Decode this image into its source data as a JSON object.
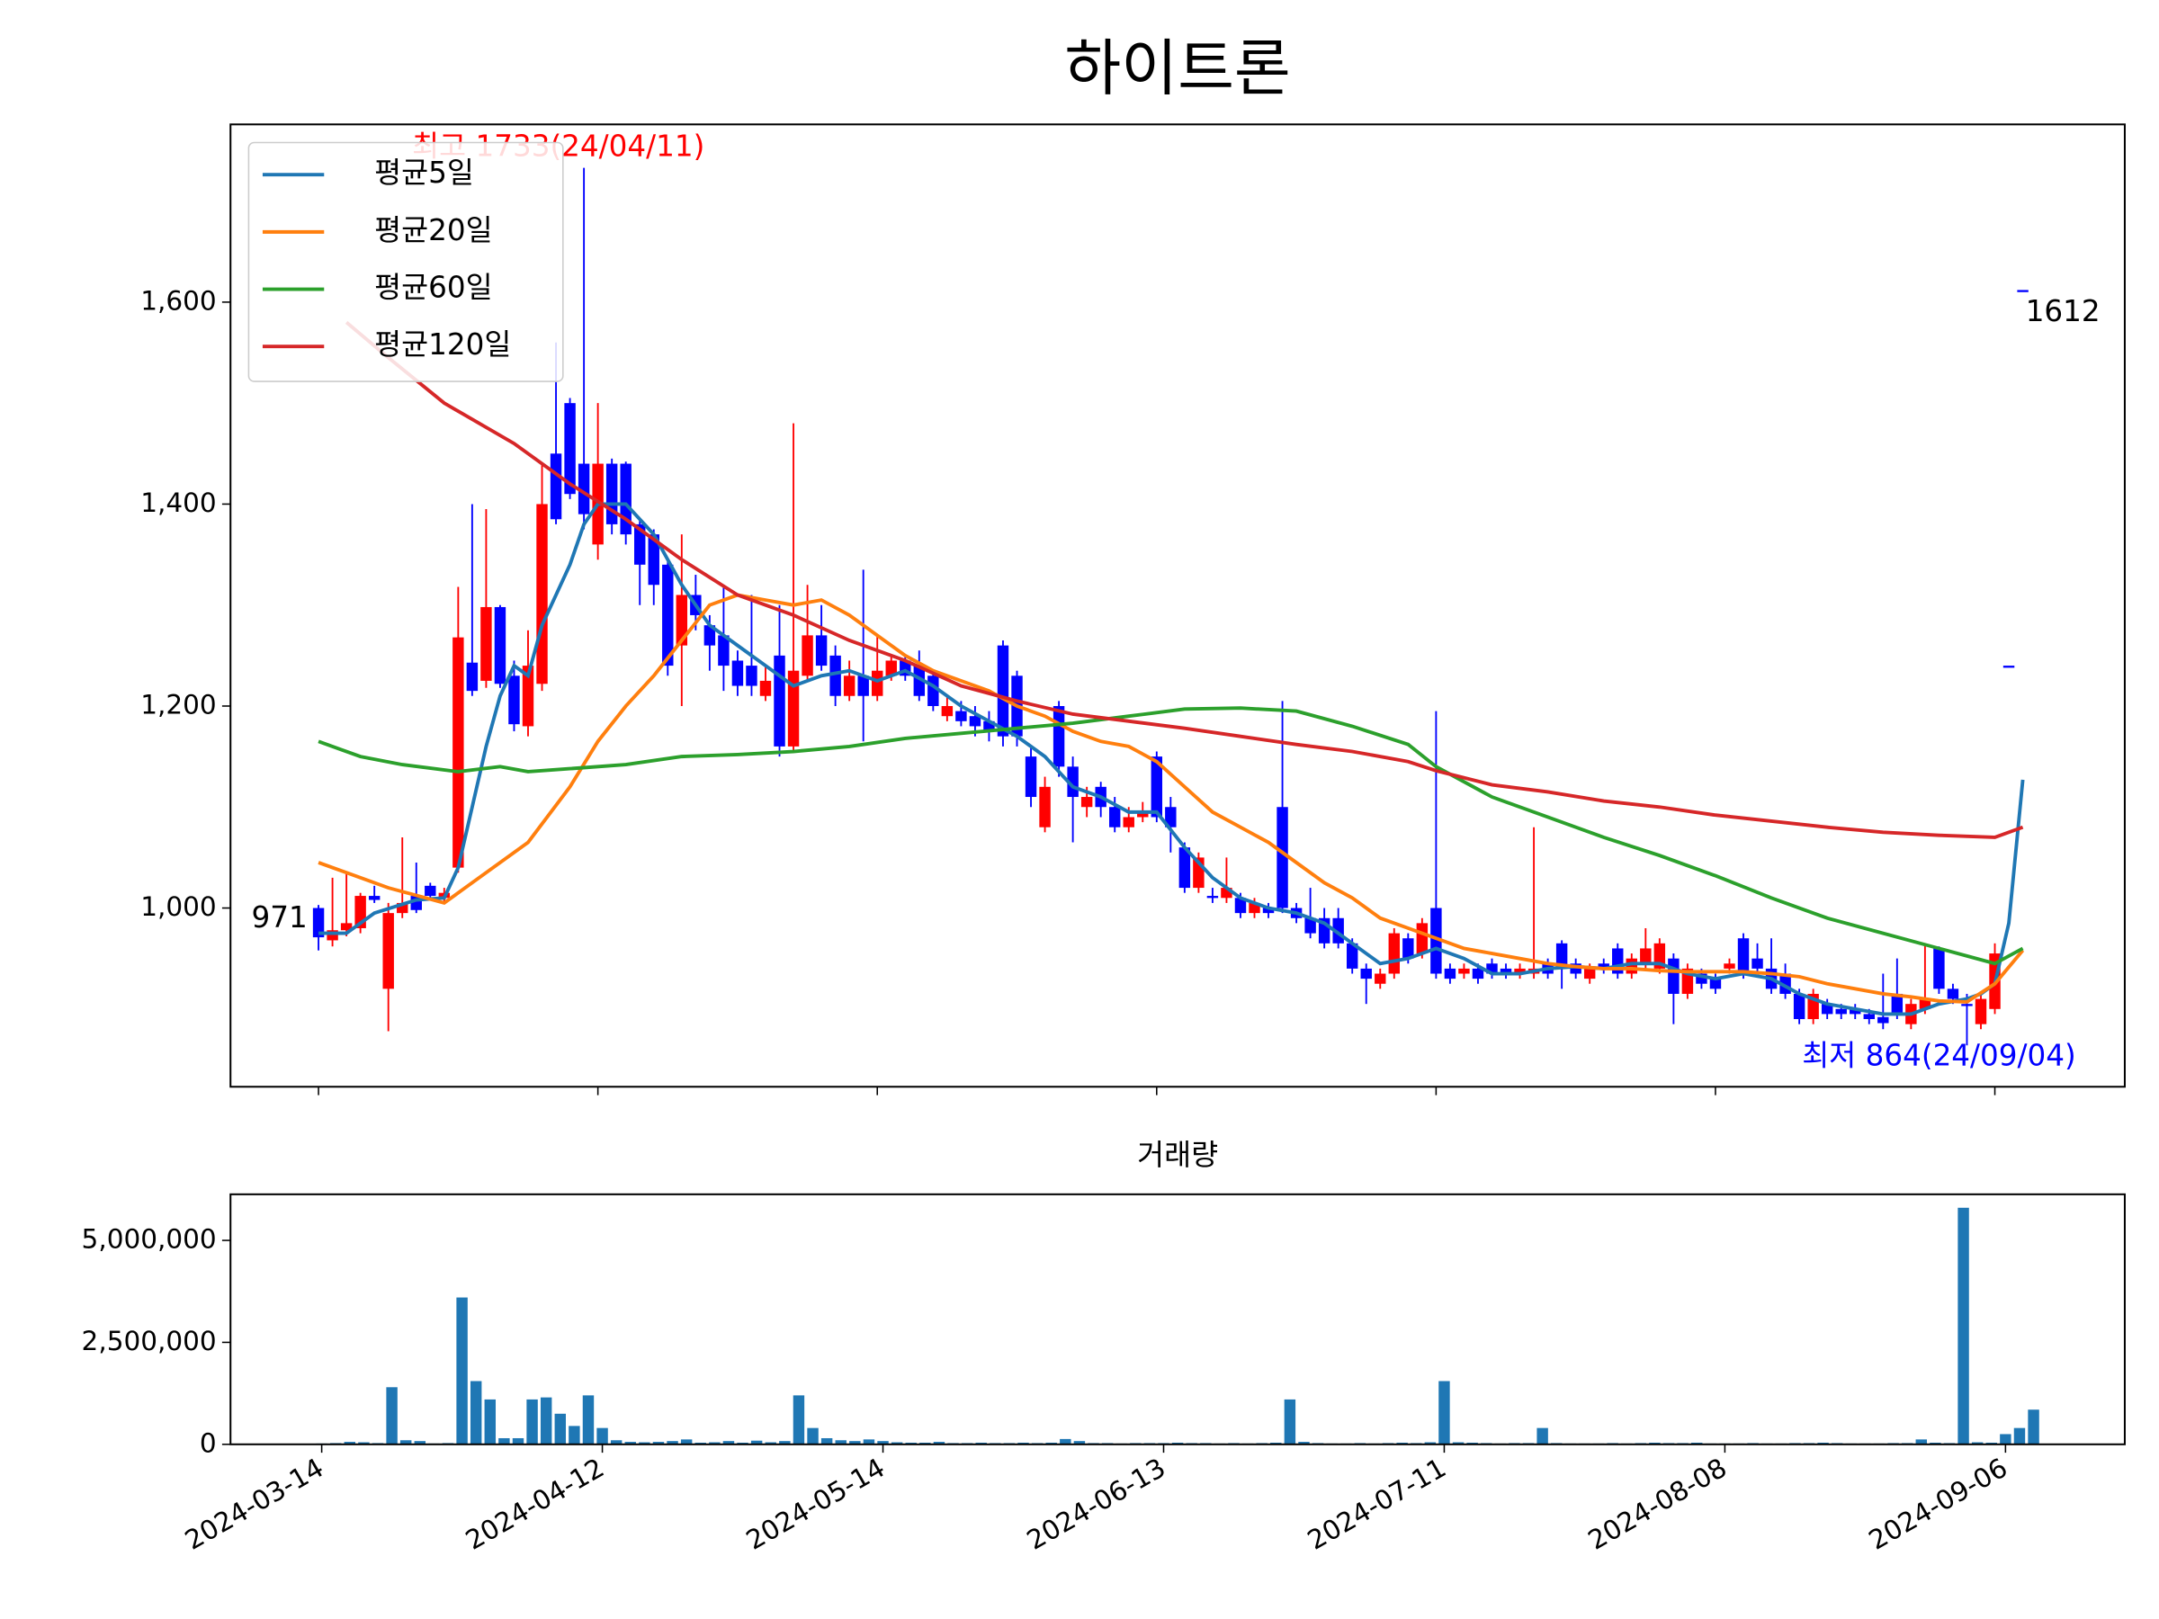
{
  "chart_data": [
    {
      "type": "candlestick",
      "title": "하이트론",
      "open": [
        1000,
        968,
        978,
        980,
        1012,
        920,
        995,
        1012,
        1022,
        1010,
        1040,
        1243,
        1225,
        1298,
        1230,
        1180,
        1222,
        1450,
        1500,
        1440,
        1360,
        1440,
        1440,
        1380,
        1370,
        1340,
        1260,
        1310,
        1280,
        1270,
        1245,
        1240,
        1210,
        1250,
        1160,
        1230,
        1270,
        1250,
        1210,
        1230,
        1210,
        1230,
        1245,
        1240,
        1230,
        1190,
        1195,
        1190,
        1185,
        1260,
        1230,
        1150,
        1080,
        1200,
        1140,
        1100,
        1120,
        1100,
        1080,
        1090,
        1150,
        1100,
        1060,
        1020,
        1012,
        1010,
        1010,
        995,
        1000,
        1100,
        1000,
        990,
        990,
        990,
        965,
        940,
        925,
        935,
        970,
        955,
        1000,
        940,
        935,
        940,
        945,
        940,
        935,
        935,
        945,
        965,
        945,
        930,
        945,
        960,
        935,
        945,
        940,
        950,
        915,
        935,
        930,
        940,
        970,
        950,
        940,
        935,
        915,
        890,
        905,
        900,
        900,
        895,
        892,
        915,
        885,
        900,
        960,
        920,
        905,
        885,
        900,
        1240,
        1612
      ],
      "high": [
        1003,
        1030,
        1035,
        1015,
        1022,
        1005,
        1070,
        1045,
        1025,
        1020,
        1318,
        1400,
        1395,
        1300,
        1245,
        1275,
        1440,
        1560,
        1505,
        1733,
        1500,
        1445,
        1442,
        1385,
        1375,
        1345,
        1370,
        1330,
        1290,
        1320,
        1255,
        1310,
        1240,
        1300,
        1480,
        1320,
        1300,
        1260,
        1245,
        1335,
        1270,
        1250,
        1250,
        1255,
        1235,
        1210,
        1205,
        1200,
        1195,
        1265,
        1235,
        1160,
        1130,
        1205,
        1150,
        1120,
        1125,
        1110,
        1100,
        1105,
        1155,
        1110,
        1065,
        1055,
        1020,
        1050,
        1015,
        1010,
        1005,
        1205,
        1005,
        1020,
        1000,
        1000,
        970,
        945,
        940,
        980,
        975,
        990,
        1195,
        945,
        945,
        945,
        950,
        945,
        945,
        1080,
        950,
        968,
        950,
        945,
        950,
        965,
        955,
        980,
        970,
        955,
        945,
        940,
        935,
        950,
        975,
        965,
        970,
        945,
        920,
        920,
        910,
        905,
        905,
        900,
        935,
        950,
        910,
        965,
        962,
        925,
        915,
        915,
        965,
        1240,
        1612
      ],
      "low": [
        958,
        962,
        972,
        975,
        1005,
        878,
        990,
        995,
        1008,
        1005,
        1035,
        1210,
        1218,
        1218,
        1175,
        1170,
        1215,
        1380,
        1405,
        1375,
        1345,
        1370,
        1360,
        1300,
        1300,
        1230,
        1200,
        1275,
        1235,
        1215,
        1210,
        1210,
        1205,
        1150,
        1155,
        1225,
        1235,
        1200,
        1205,
        1165,
        1205,
        1225,
        1225,
        1205,
        1195,
        1185,
        1180,
        1170,
        1165,
        1160,
        1160,
        1100,
        1075,
        1130,
        1065,
        1090,
        1090,
        1075,
        1075,
        1085,
        1085,
        1055,
        1015,
        1015,
        1005,
        1005,
        990,
        990,
        990,
        995,
        985,
        970,
        960,
        960,
        935,
        905,
        920,
        930,
        945,
        950,
        930,
        925,
        930,
        925,
        930,
        930,
        930,
        930,
        930,
        920,
        930,
        925,
        935,
        930,
        930,
        940,
        935,
        885,
        910,
        920,
        915,
        935,
        930,
        935,
        915,
        910,
        885,
        885,
        890,
        890,
        890,
        885,
        880,
        890,
        880,
        895,
        915,
        905,
        864,
        880,
        895,
        1240,
        1612
      ],
      "close": [
        971,
        978,
        985,
        1012,
        1008,
        995,
        1005,
        998,
        1012,
        1015,
        1268,
        1215,
        1298,
        1222,
        1182,
        1240,
        1400,
        1385,
        1410,
        1390,
        1440,
        1380,
        1370,
        1340,
        1320,
        1240,
        1310,
        1290,
        1260,
        1240,
        1220,
        1220,
        1225,
        1160,
        1235,
        1270,
        1240,
        1210,
        1230,
        1210,
        1235,
        1245,
        1230,
        1210,
        1200,
        1200,
        1185,
        1180,
        1175,
        1170,
        1170,
        1110,
        1120,
        1140,
        1110,
        1110,
        1100,
        1080,
        1090,
        1095,
        1090,
        1080,
        1020,
        1050,
        1010,
        1020,
        995,
        1005,
        995,
        1000,
        990,
        975,
        965,
        965,
        940,
        930,
        935,
        975,
        950,
        985,
        935,
        930,
        940,
        930,
        935,
        935,
        940,
        940,
        935,
        940,
        935,
        940,
        940,
        935,
        950,
        960,
        965,
        915,
        940,
        925,
        920,
        945,
        935,
        940,
        920,
        915,
        890,
        915,
        895,
        895,
        895,
        890,
        886,
        895,
        905,
        910,
        920,
        910,
        903,
        910,
        955,
        1240,
        1612
      ],
      "up_color": "#ff0000",
      "down_color": "#0000ff",
      "series": [
        {
          "name": "평균5일",
          "color": "#1f77b4",
          "x": [
            0,
            2,
            4,
            7,
            9,
            10,
            11,
            12,
            13,
            14,
            15,
            16,
            18,
            19,
            20,
            22,
            24,
            26,
            28,
            30,
            32,
            34,
            36,
            38,
            40,
            42,
            44,
            46,
            48,
            50,
            52,
            54,
            56,
            58,
            60,
            62,
            64,
            66,
            68,
            70,
            72,
            74,
            76,
            78,
            80,
            82,
            84,
            86,
            88,
            90,
            92,
            94,
            96,
            98,
            100,
            102,
            104,
            106,
            108,
            110,
            112,
            114,
            116,
            118,
            119,
            120,
            121,
            122
          ],
          "values": [
            975,
            975,
            995,
            1008,
            1010,
            1040,
            1100,
            1160,
            1210,
            1240,
            1230,
            1280,
            1340,
            1380,
            1400,
            1400,
            1370,
            1320,
            1280,
            1260,
            1240,
            1220,
            1230,
            1235,
            1225,
            1235,
            1220,
            1200,
            1185,
            1170,
            1150,
            1120,
            1110,
            1095,
            1095,
            1060,
            1030,
            1010,
            1000,
            995,
            985,
            965,
            945,
            950,
            960,
            950,
            935,
            935,
            940,
            942,
            940,
            945,
            945,
            935,
            930,
            935,
            930,
            915,
            905,
            900,
            895,
            895,
            905,
            910,
            915,
            925,
            985,
            1127
          ]
        },
        {
          "name": "평균20일",
          "color": "#ff7f0e",
          "x": [
            0,
            5,
            9,
            12,
            15,
            18,
            20,
            22,
            24,
            26,
            28,
            30,
            32,
            34,
            36,
            38,
            40,
            42,
            44,
            46,
            48,
            50,
            52,
            54,
            56,
            58,
            60,
            62,
            64,
            66,
            68,
            70,
            72,
            74,
            76,
            78,
            80,
            82,
            84,
            86,
            88,
            90,
            92,
            94,
            96,
            98,
            100,
            102,
            104,
            106,
            108,
            110,
            112,
            114,
            116,
            118,
            120,
            122
          ],
          "values": [
            1045,
            1020,
            1005,
            1035,
            1065,
            1120,
            1165,
            1200,
            1230,
            1265,
            1300,
            1310,
            1305,
            1300,
            1305,
            1290,
            1270,
            1250,
            1235,
            1225,
            1215,
            1200,
            1190,
            1175,
            1165,
            1160,
            1145,
            1120,
            1095,
            1080,
            1065,
            1045,
            1025,
            1010,
            990,
            980,
            970,
            960,
            955,
            950,
            945,
            942,
            940,
            940,
            938,
            937,
            937,
            937,
            935,
            932,
            925,
            920,
            915,
            912,
            908,
            907,
            925,
            958
          ]
        },
        {
          "name": "평균60일",
          "color": "#2ca02c",
          "x": [
            0,
            3,
            6,
            10,
            13,
            15,
            18,
            22,
            26,
            30,
            34,
            38,
            42,
            46,
            50,
            54,
            58,
            62,
            66,
            70,
            74,
            78,
            80,
            84,
            88,
            92,
            96,
            100,
            104,
            108,
            112,
            116,
            120,
            122
          ],
          "values": [
            1165,
            1150,
            1142,
            1135,
            1140,
            1135,
            1138,
            1142,
            1150,
            1152,
            1155,
            1160,
            1168,
            1173,
            1178,
            1183,
            1190,
            1197,
            1198,
            1195,
            1180,
            1162,
            1140,
            1110,
            1090,
            1070,
            1052,
            1032,
            1010,
            990,
            975,
            960,
            945,
            960
          ]
        },
        {
          "name": "평균120일",
          "color": "#d62728",
          "x": [
            2,
            5,
            9,
            14,
            18,
            22,
            26,
            30,
            34,
            38,
            42,
            46,
            50,
            54,
            58,
            62,
            66,
            70,
            74,
            78,
            80,
            84,
            88,
            92,
            96,
            100,
            104,
            108,
            112,
            116,
            120,
            122
          ],
          "values": [
            1580,
            1545,
            1500,
            1460,
            1420,
            1385,
            1345,
            1310,
            1290,
            1265,
            1245,
            1220,
            1205,
            1192,
            1185,
            1178,
            1170,
            1162,
            1155,
            1145,
            1136,
            1122,
            1115,
            1106,
            1100,
            1092,
            1086,
            1080,
            1075,
            1072,
            1070,
            1080
          ]
        }
      ],
      "annotations": [
        "최고 1733(24/04/11)",
        "971",
        "1612",
        "최저 864(24/09/04)"
      ],
      "xlim": [
        -6.3,
        129.3
      ],
      "ylim": [
        823,
        1776
      ],
      "yticks": [
        {
          "value": 1000,
          "label": "1,000"
        },
        {
          "value": 1200,
          "label": "1,200"
        },
        {
          "value": 1400,
          "label": "1,400"
        },
        {
          "value": 1600,
          "label": "1,600"
        }
      ],
      "legend": "upper left"
    },
    {
      "type": "bar",
      "title": "거래량",
      "color": "#1f77b4",
      "categories": [
        "2024-03-14",
        null,
        null,
        null,
        null,
        null,
        null,
        null,
        null,
        null,
        null,
        null,
        null,
        null,
        null,
        null,
        null,
        null,
        null,
        null,
        "2024-04-12",
        null,
        null,
        null,
        null,
        null,
        null,
        null,
        null,
        null,
        null,
        null,
        null,
        null,
        null,
        null,
        null,
        null,
        null,
        null,
        "2024-05-14",
        null,
        null,
        null,
        null,
        null,
        null,
        null,
        null,
        null,
        null,
        null,
        null,
        null,
        null,
        null,
        null,
        null,
        null,
        null,
        "2024-06-13",
        null,
        null,
        null,
        null,
        null,
        null,
        null,
        null,
        null,
        null,
        null,
        null,
        null,
        null,
        null,
        null,
        null,
        null,
        null,
        "2024-07-11",
        null,
        null,
        null,
        null,
        null,
        null,
        null,
        null,
        null,
        null,
        null,
        null,
        null,
        null,
        null,
        null,
        null,
        null,
        null,
        "2024-08-08",
        null,
        null,
        null,
        null,
        null,
        null,
        null,
        null,
        null,
        null,
        null,
        null,
        null,
        null,
        null,
        null,
        null,
        null,
        null,
        "2024-09-06",
        null,
        null
      ],
      "values": [
        20000,
        30000,
        60000,
        50000,
        30000,
        1400000,
        100000,
        80000,
        20000,
        30000,
        3600000,
        1550000,
        1100000,
        150000,
        150000,
        1100000,
        1150000,
        750000,
        450000,
        1200000,
        400000,
        100000,
        60000,
        50000,
        60000,
        80000,
        120000,
        40000,
        50000,
        80000,
        40000,
        90000,
        50000,
        80000,
        1200000,
        400000,
        150000,
        100000,
        80000,
        120000,
        80000,
        50000,
        40000,
        40000,
        60000,
        30000,
        30000,
        40000,
        30000,
        30000,
        40000,
        30000,
        40000,
        130000,
        80000,
        30000,
        30000,
        20000,
        30000,
        30000,
        30000,
        40000,
        30000,
        30000,
        20000,
        30000,
        20000,
        30000,
        40000,
        1100000,
        60000,
        30000,
        20000,
        20000,
        30000,
        20000,
        30000,
        40000,
        30000,
        50000,
        1550000,
        50000,
        40000,
        30000,
        20000,
        30000,
        30000,
        400000,
        30000,
        20000,
        20000,
        20000,
        30000,
        20000,
        30000,
        40000,
        30000,
        30000,
        40000,
        20000,
        20000,
        20000,
        30000,
        20000,
        20000,
        30000,
        30000,
        40000,
        30000,
        20000,
        20000,
        20000,
        30000,
        30000,
        120000,
        40000,
        30000,
        5800000,
        50000,
        40000,
        250000,
        400000,
        850000
      ],
      "xlim": [
        -6.5,
        128.5
      ],
      "ylim": [
        0,
        6130000
      ],
      "yticks": [
        0,
        {
          "value": 2500000,
          "label": "2,500,000"
        },
        {
          "value": 5000000,
          "label": "5,000,000"
        }
      ]
    }
  ]
}
